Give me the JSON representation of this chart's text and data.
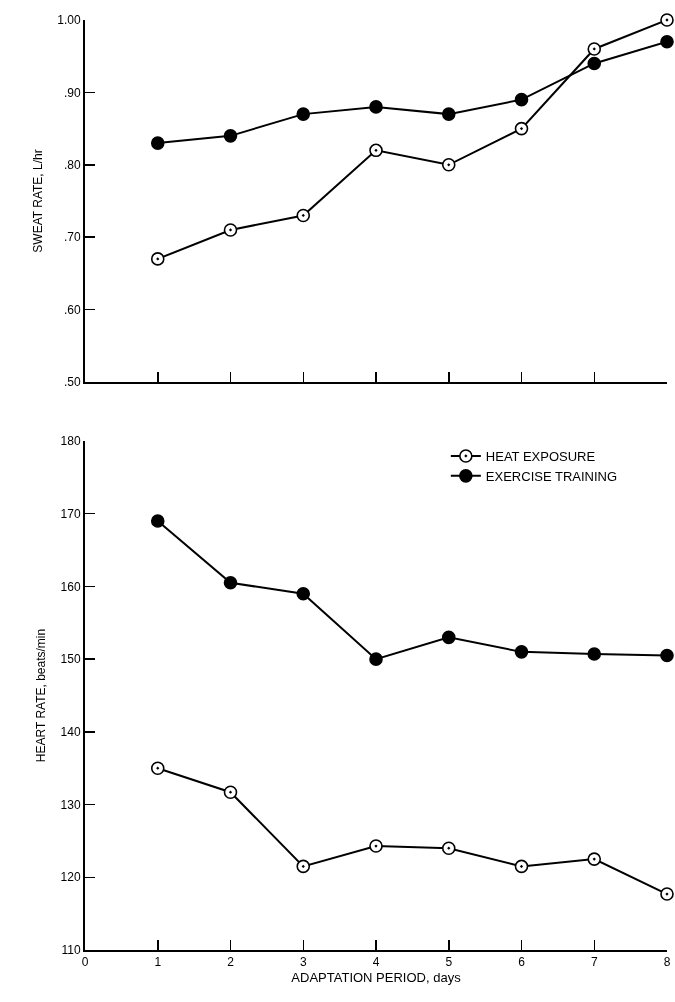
{
  "chart_data": [
    {
      "type": "line",
      "ylabel": "SWEAT RATE, L/hr",
      "x": [
        1,
        2,
        3,
        4,
        5,
        6,
        7,
        8
      ],
      "xlim": [
        0,
        8
      ],
      "xticks": [
        {
          "value": 1,
          "label": null
        },
        {
          "value": 2,
          "label": null
        },
        {
          "value": 3,
          "label": null
        },
        {
          "value": 4,
          "label": null
        },
        {
          "value": 5,
          "label": null
        },
        {
          "value": 6,
          "label": null
        },
        {
          "value": 7,
          "label": null
        },
        {
          "value": 8,
          "label": null
        }
      ],
      "ylim": [
        0.5,
        1.0
      ],
      "yticks": [
        {
          "value": 0.5,
          "label": ".50"
        },
        {
          "value": 0.6,
          "label": ".60"
        },
        {
          "value": 0.7,
          "label": ".70"
        },
        {
          "value": 0.8,
          "label": ".80"
        },
        {
          "value": 0.9,
          "label": ".90"
        },
        {
          "value": 1.0,
          "label": "1.00"
        }
      ],
      "tick_labels": "y",
      "marker": "circle",
      "legend": false,
      "series": [
        {
          "color": "#ffffff",
          "values": [
            0.67,
            0.71,
            0.73,
            0.82,
            0.8,
            0.85,
            0.96,
            1.0
          ]
        },
        {
          "color": "#000000",
          "values": [
            0.83,
            0.84,
            0.87,
            0.88,
            0.87,
            0.89,
            0.94,
            0.97
          ]
        }
      ]
    },
    {
      "type": "line",
      "ylabel": "HEART RATE, beats/min",
      "xlabel": "ADAPTATION PERIOD, days",
      "x": [
        1,
        2,
        3,
        4,
        5,
        6,
        7,
        8
      ],
      "xlim": [
        0,
        8
      ],
      "xticks": [
        0,
        1,
        2,
        3,
        4,
        5,
        6,
        7,
        8
      ],
      "ylim": [
        110,
        180
      ],
      "yticks": [
        110,
        120,
        130,
        140,
        150,
        160,
        170,
        180
      ],
      "marker": "circle",
      "legend": "top right",
      "series": [
        {
          "name": "HEAT EXPOSURE",
          "color": "#ffffff",
          "values": [
            135,
            131.7,
            121.5,
            124.3,
            124,
            121.5,
            122.5,
            117.7
          ]
        },
        {
          "name": "EXERCISE TRAINING",
          "color": "#000000",
          "values": [
            169,
            160.5,
            159,
            150,
            153,
            151,
            150.7,
            150.5
          ]
        }
      ]
    }
  ]
}
